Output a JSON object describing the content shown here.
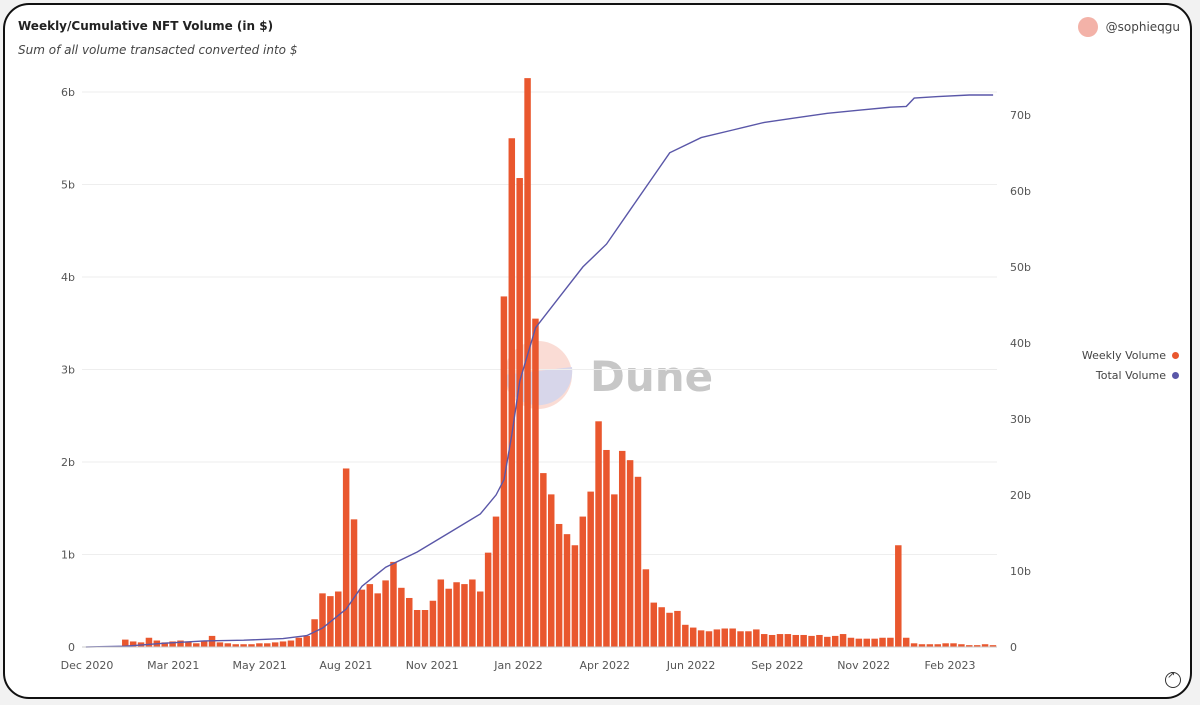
{
  "header": {
    "title": "Weekly/Cumulative NFT Volume (in $)",
    "subtitle": "Sum of all volume transacted converted into $",
    "author": "@sophieqgu"
  },
  "watermark": "Dune",
  "legend": {
    "weekly": "Weekly Volume",
    "total": "Total Volume"
  },
  "colors": {
    "bars": "#e9572e",
    "line": "#5a57a8",
    "axis_text": "#555555"
  },
  "chart_data": {
    "type": "bar",
    "title": "Weekly/Cumulative NFT Volume (in $)",
    "subtitle": "Sum of all volume transacted converted into $",
    "x_tick_labels": [
      "Dec 2020",
      "Mar 2021",
      "May 2021",
      "Aug 2021",
      "Nov 2021",
      "Jan 2022",
      "Apr 2022",
      "Jun 2022",
      "Sep 2022",
      "Nov 2022",
      "Feb 2023"
    ],
    "y_left_ticks": [
      "0",
      "1b",
      "2b",
      "3b",
      "4b",
      "5b",
      "6b"
    ],
    "y_right_ticks": [
      "0",
      "10b",
      "20b",
      "30b",
      "40b",
      "50b",
      "60b",
      "70b"
    ],
    "ylim_left": [
      0,
      6000000000
    ],
    "ylim_right": [
      0,
      73000000000
    ],
    "series": [
      {
        "name": "Weekly Volume",
        "kind": "bar",
        "axis": "left",
        "unit": "b",
        "values": [
          0.0,
          0.0,
          0.0,
          0.01,
          0.01,
          0.08,
          0.06,
          0.05,
          0.1,
          0.07,
          0.05,
          0.06,
          0.07,
          0.06,
          0.04,
          0.06,
          0.12,
          0.05,
          0.04,
          0.03,
          0.03,
          0.03,
          0.04,
          0.04,
          0.05,
          0.06,
          0.07,
          0.1,
          0.12,
          0.3,
          0.58,
          0.55,
          0.6,
          1.93,
          1.38,
          0.62,
          0.68,
          0.58,
          0.72,
          0.92,
          0.64,
          0.53,
          0.4,
          0.4,
          0.5,
          0.73,
          0.63,
          0.7,
          0.68,
          0.73,
          0.6,
          1.02,
          1.41,
          3.79,
          5.5,
          5.07,
          6.15,
          3.55,
          1.88,
          1.65,
          1.33,
          1.22,
          1.1,
          1.41,
          1.68,
          2.44,
          2.13,
          1.65,
          2.12,
          2.02,
          1.84,
          0.84,
          0.48,
          0.43,
          0.37,
          0.39,
          0.24,
          0.21,
          0.18,
          0.17,
          0.19,
          0.2,
          0.2,
          0.17,
          0.17,
          0.19,
          0.14,
          0.13,
          0.14,
          0.14,
          0.13,
          0.13,
          0.12,
          0.13,
          0.11,
          0.12,
          0.14,
          0.1,
          0.09,
          0.09,
          0.09,
          0.1,
          0.1,
          1.1,
          0.1,
          0.04,
          0.03,
          0.03,
          0.03,
          0.04,
          0.04,
          0.03,
          0.02,
          0.02,
          0.03,
          0.02
        ]
      },
      {
        "name": "Total Volume",
        "kind": "line",
        "axis": "right",
        "unit": "b",
        "points": [
          [
            0,
            0
          ],
          [
            5,
            0.1
          ],
          [
            10,
            0.5
          ],
          [
            15,
            0.8
          ],
          [
            20,
            0.9
          ],
          [
            25,
            1.1
          ],
          [
            28,
            1.5
          ],
          [
            30,
            2.5
          ],
          [
            33,
            5.0
          ],
          [
            35,
            8.0
          ],
          [
            38,
            10.5
          ],
          [
            42,
            12.5
          ],
          [
            46,
            15.0
          ],
          [
            50,
            17.5
          ],
          [
            52,
            20.0
          ],
          [
            53,
            22.0
          ],
          [
            54,
            28.0
          ],
          [
            55,
            35.0
          ],
          [
            57,
            42.0
          ],
          [
            60,
            46.0
          ],
          [
            63,
            50.0
          ],
          [
            66,
            53.0
          ],
          [
            69,
            57.5
          ],
          [
            72,
            62.0
          ],
          [
            74,
            65.0
          ],
          [
            78,
            67.0
          ],
          [
            82,
            68.0
          ],
          [
            86,
            69.0
          ],
          [
            90,
            69.6
          ],
          [
            94,
            70.2
          ],
          [
            98,
            70.6
          ],
          [
            102,
            71.0
          ],
          [
            104,
            71.1
          ],
          [
            105,
            72.2
          ],
          [
            108,
            72.4
          ],
          [
            112,
            72.6
          ],
          [
            115,
            72.6
          ]
        ]
      }
    ],
    "legend_position": "right"
  }
}
